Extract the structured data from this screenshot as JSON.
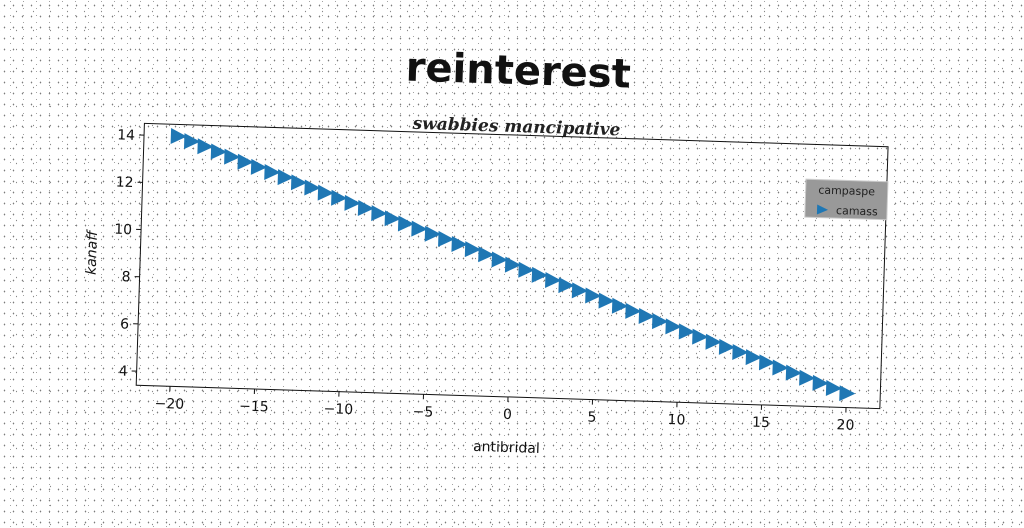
{
  "chart_data": {
    "type": "scatter",
    "title": "reinterest",
    "subtitle": "swabbies mancipative",
    "xlabel": "antibridal",
    "ylabel": "kanaff",
    "xlim": [
      -22,
      22
    ],
    "ylim": [
      3.4,
      14.5
    ],
    "xticks": [
      -20,
      -15,
      -10,
      -5,
      0,
      5,
      10,
      15,
      20
    ],
    "xtick_labels": [
      "−20",
      "−15",
      "−10",
      "−5",
      "0",
      "5",
      "10",
      "15",
      "20"
    ],
    "yticks": [
      4,
      6,
      8,
      10,
      12,
      14
    ],
    "ytick_labels": [
      "4",
      "6",
      "8",
      "10",
      "12",
      "14"
    ],
    "grid": false,
    "legend": {
      "title": "campaspe",
      "position": "top-right"
    },
    "series": [
      {
        "name": "camass",
        "marker": "triangle-right",
        "color": "#1f77b4",
        "x": [
          -20.0,
          -19.2,
          -18.4,
          -17.6,
          -16.8,
          -16.0,
          -15.2,
          -14.4,
          -13.6,
          -12.8,
          -12.0,
          -11.2,
          -10.4,
          -9.6,
          -8.8,
          -8.0,
          -7.2,
          -6.4,
          -5.6,
          -4.8,
          -4.0,
          -3.2,
          -2.4,
          -1.6,
          -0.8,
          0.0,
          0.8,
          1.6,
          2.4,
          3.2,
          4.0,
          4.8,
          5.6,
          6.4,
          7.2,
          8.0,
          8.8,
          9.6,
          10.4,
          11.2,
          12.0,
          12.8,
          13.6,
          14.4,
          15.2,
          16.0,
          16.8,
          17.6,
          18.4,
          19.2,
          20.0
        ],
        "y": [
          14.0,
          13.8,
          13.6,
          13.4,
          13.2,
          13.0,
          12.8,
          12.6,
          12.4,
          12.2,
          12.0,
          11.8,
          11.6,
          11.4,
          11.2,
          11.0,
          10.8,
          10.6,
          10.4,
          10.2,
          10.0,
          9.8,
          9.6,
          9.4,
          9.2,
          9.0,
          8.8,
          8.6,
          8.4,
          8.2,
          8.0,
          7.8,
          7.6,
          7.4,
          7.2,
          7.0,
          6.8,
          6.6,
          6.4,
          6.2,
          6.0,
          5.8,
          5.6,
          5.4,
          5.2,
          5.0,
          4.8,
          4.6,
          4.4,
          4.2,
          4.0
        ]
      }
    ]
  }
}
